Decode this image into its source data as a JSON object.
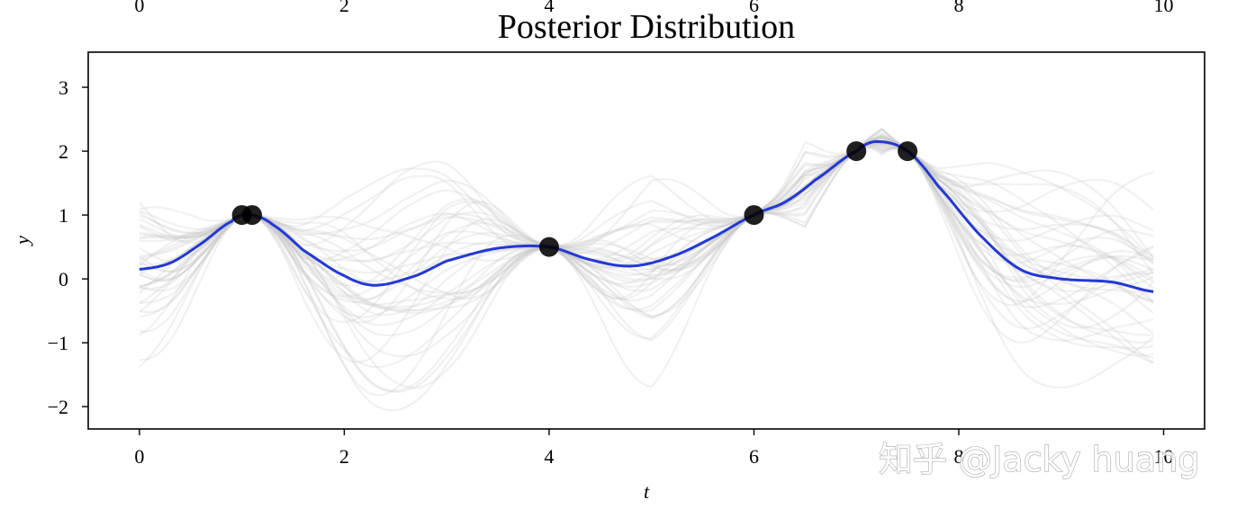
{
  "chart_data": {
    "type": "line",
    "title": "Posterior Distribution",
    "xlabel": "t",
    "ylabel": "y",
    "xlim": [
      -0.5,
      10.4
    ],
    "ylim": [
      -2.35,
      3.55
    ],
    "x_ticks": [
      0,
      2,
      4,
      6,
      8,
      10
    ],
    "y_ticks": [
      -2,
      -1,
      0,
      1,
      2,
      3
    ],
    "top_axis_ticks": [
      0,
      2,
      4,
      6,
      8,
      10
    ],
    "grid": false,
    "series": [
      {
        "role": "posterior mean",
        "color": "#2338d6",
        "x": [
          0.0,
          0.3,
          0.6,
          0.9,
          1.0,
          1.1,
          1.3,
          1.6,
          2.0,
          2.3,
          2.7,
          3.0,
          3.5,
          4.0,
          4.4,
          4.8,
          5.2,
          5.6,
          6.0,
          6.3,
          6.6,
          7.0,
          7.2,
          7.5,
          7.8,
          8.2,
          8.6,
          9.0,
          9.5,
          9.9
        ],
        "y": [
          0.15,
          0.25,
          0.55,
          0.9,
          1.0,
          1.0,
          0.85,
          0.45,
          0.05,
          -0.1,
          0.05,
          0.28,
          0.48,
          0.5,
          0.3,
          0.2,
          0.35,
          0.65,
          1.0,
          1.2,
          1.55,
          2.0,
          2.15,
          2.0,
          1.45,
          0.7,
          0.15,
          0.0,
          -0.05,
          -0.2
        ]
      }
    ],
    "samples": {
      "role": "posterior samples",
      "color": "#c8c8c8",
      "opacity": 0.25,
      "count": 40
    },
    "observations": {
      "color": "#000000",
      "x": [
        1.0,
        1.1,
        4.0,
        6.0,
        7.0,
        7.5
      ],
      "y": [
        1.0,
        1.0,
        0.5,
        1.0,
        2.0,
        2.0
      ]
    }
  },
  "watermark": {
    "text": "知乎 @Jacky huang"
  }
}
